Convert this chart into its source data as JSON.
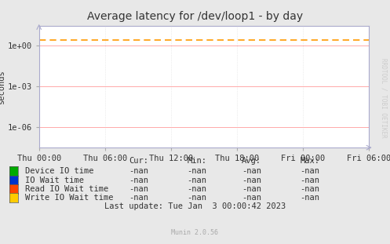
{
  "title": "Average latency for /dev/loop1 - by day",
  "ylabel": "seconds",
  "bg_color": "#e8e8e8",
  "plot_bg_color": "#ffffff",
  "grid_color_major_y": "#ffaaaa",
  "grid_color_minor_y": "#dddddd",
  "grid_color_x": "#dddddd",
  "xticklabels": [
    "Thu 00:00",
    "Thu 06:00",
    "Thu 12:00",
    "Thu 18:00",
    "Fri 00:00",
    "Fri 06:00"
  ],
  "xtick_positions": [
    0,
    6,
    12,
    18,
    24,
    30
  ],
  "xlim": [
    0,
    30
  ],
  "ylim_bottom": 3e-08,
  "ylim_top": 30,
  "dashed_line_y": 2.5,
  "dashed_line_color": "#ff9900",
  "watermark": "RRDTOOL / TOBI OETIKER",
  "legend_entries": [
    {
      "label": "Device IO time",
      "color": "#00aa00"
    },
    {
      "label": "IO Wait time",
      "color": "#0033cc"
    },
    {
      "label": "Read IO Wait time",
      "color": "#ff4400"
    },
    {
      "label": "Write IO Wait time",
      "color": "#ffcc00"
    }
  ],
  "table_headers": [
    "Cur:",
    "Min:",
    "Avg:",
    "Max:"
  ],
  "table_values": [
    [
      "-nan",
      "-nan",
      "-nan",
      "-nan"
    ],
    [
      "-nan",
      "-nan",
      "-nan",
      "-nan"
    ],
    [
      "-nan",
      "-nan",
      "-nan",
      "-nan"
    ],
    [
      "-nan",
      "-nan",
      "-nan",
      "-nan"
    ]
  ],
  "last_update": "Last update: Tue Jan  3 00:00:42 2023",
  "munin_version": "Munin 2.0.56",
  "title_fontsize": 10,
  "axis_fontsize": 7.5,
  "legend_fontsize": 7.5,
  "watermark_fontsize": 5.5
}
